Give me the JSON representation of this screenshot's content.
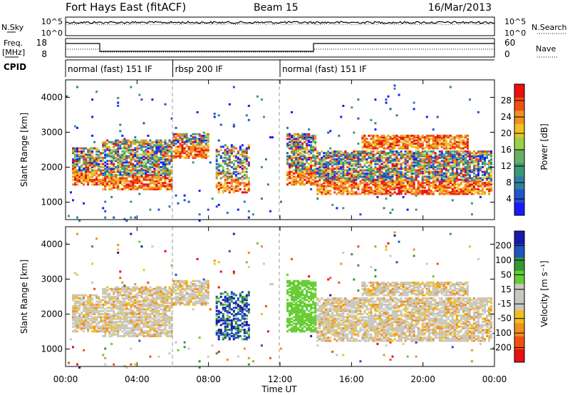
{
  "header": {
    "station": "Fort Hays East (fitACF)",
    "beam": "Beam 15",
    "date": "16/Mar/2013"
  },
  "noise_panel": {
    "left_label": "N.Sky",
    "right_label": "N.Search",
    "left_ticks": [
      "10^5",
      "10^0"
    ],
    "right_ticks": [
      "10^5",
      "10^0"
    ]
  },
  "freq_panel": {
    "left_label_1": "Freq.",
    "left_label_2": "[MHz]",
    "right_label": "Nave",
    "left_ticks": [
      "18",
      "8"
    ],
    "right_ticks": [
      "60",
      "0"
    ]
  },
  "cpid": {
    "label": "CPID",
    "segments": [
      {
        "name": "normal (fast) 151 IF",
        "start_hour": 0,
        "end_hour": 6
      },
      {
        "name": "rbsp 200 IF",
        "start_hour": 6,
        "end_hour": 12
      },
      {
        "name": "normal (fast) 151 IF",
        "start_hour": 12,
        "end_hour": 24
      }
    ]
  },
  "colors": {
    "power_scale": [
      "#1a1aff",
      "#2255cc",
      "#2f7fa0",
      "#3a9a78",
      "#66b060",
      "#9ad04a",
      "#f0c020",
      "#f09020",
      "#f05010",
      "#e81010"
    ],
    "velocity_scale": [
      "#e81010",
      "#f05010",
      "#f09020",
      "#f0c020",
      "#c8c8c0",
      "#c8c8c0",
      "#66cc33",
      "#339933",
      "#2255bb",
      "#1a1aaa"
    ]
  },
  "chart_data": [
    {
      "type": "heatmap",
      "panel": "power",
      "ylabel": "Slant Range [km]",
      "colorbar_label": "Power [dB]",
      "colorbar_ticks": [
        "4",
        "8",
        "12",
        "16",
        "20",
        "24",
        "28"
      ],
      "yticks": [
        "1000",
        "2000",
        "3000",
        "4000"
      ],
      "ylim": [
        500,
        4500
      ],
      "xlim": [
        0,
        24
      ]
    },
    {
      "type": "heatmap",
      "panel": "velocity",
      "ylabel": "Slant Range [km]",
      "colorbar_label": "Velocity [m s⁻¹]",
      "colorbar_ticks": [
        "-200",
        "-100",
        "-50",
        "-15",
        "15",
        "50",
        "100",
        "200"
      ],
      "yticks": [
        "1000",
        "2000",
        "3000",
        "4000"
      ],
      "ylim": [
        500,
        4500
      ],
      "xlim": [
        0,
        24
      ]
    }
  ],
  "xaxis": {
    "label": "Time UT",
    "ticks": [
      "00:00",
      "04:00",
      "08:00",
      "12:00",
      "16:00",
      "20:00",
      "00:00"
    ]
  }
}
